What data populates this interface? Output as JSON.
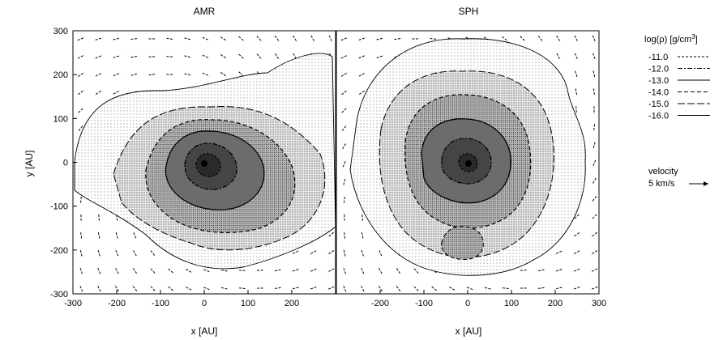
{
  "chart_data": [
    {
      "type": "contour",
      "title": "AMR",
      "xlabel": "x [AU]",
      "ylabel": "y [AU]",
      "xlim": [
        -300,
        300
      ],
      "ylim": [
        -300,
        300
      ],
      "x_ticks": [
        "-300",
        "-200",
        "-100",
        "0",
        "100",
        "200"
      ],
      "y_ticks": [
        "300",
        "200",
        "100",
        "0",
        "-100",
        "-200",
        "-300"
      ],
      "contour_levels": [
        -11.0,
        -12.0,
        -13.0,
        -14.0,
        -15.0,
        -16.0
      ],
      "center": [
        0,
        0
      ]
    },
    {
      "type": "contour",
      "title": "SPH",
      "xlabel": "x [AU]",
      "xlim": [
        -300,
        300
      ],
      "ylim": [
        -300,
        300
      ],
      "x_ticks": [
        "-200",
        "-100",
        "0",
        "100",
        "200",
        "300"
      ],
      "contour_levels": [
        -11.0,
        -12.0,
        -13.0,
        -14.0,
        -15.0,
        -16.0
      ],
      "center": [
        0,
        0
      ]
    }
  ],
  "legend": {
    "title_prefix": "log(ρ) [g/cm",
    "title_sup": "3",
    "title_suffix": "]",
    "entries": [
      {
        "label": "-11.0",
        "dash": "3,2"
      },
      {
        "label": "-12.0",
        "dash": "6,2,2,2"
      },
      {
        "label": "-13.0",
        "dash": "none"
      },
      {
        "label": "-14.0",
        "dash": "5,3"
      },
      {
        "label": "-15.0",
        "dash": "9,3"
      },
      {
        "label": "-16.0",
        "dash": "none"
      }
    ],
    "velocity_label": "velocity",
    "velocity_scale": "5 km/s"
  }
}
